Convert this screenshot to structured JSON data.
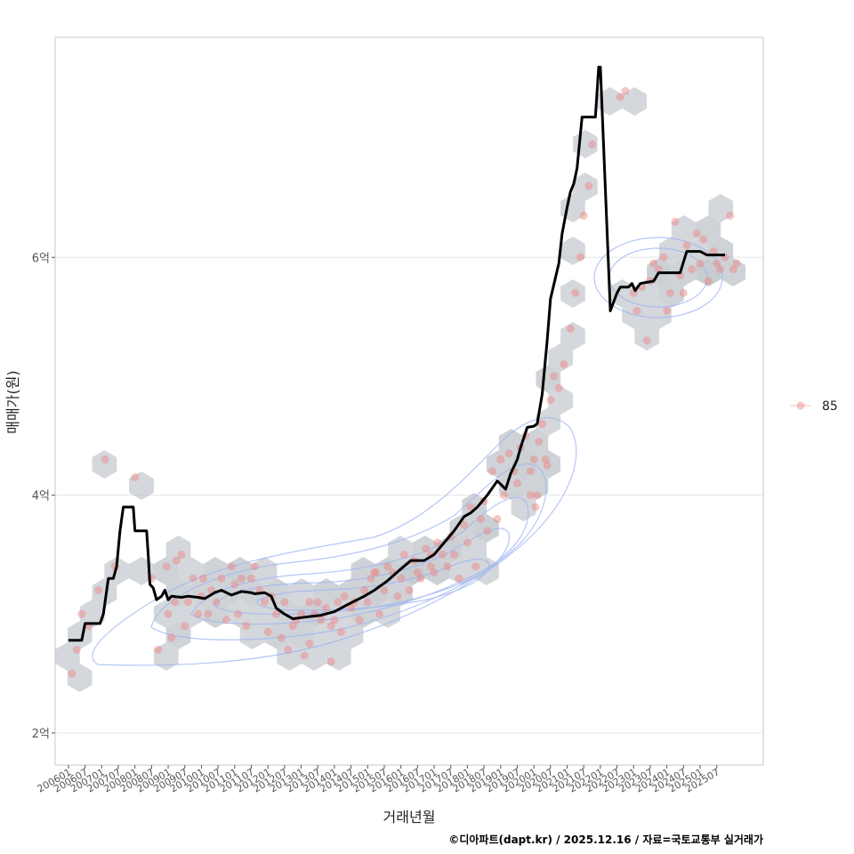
{
  "chart_data": {
    "type": "scatter",
    "title": "",
    "xlabel": "거래년월",
    "ylabel": "매매가(원)",
    "caption": "©디아파트(dapt.kr) / 2025.12.16 / 자료=국토교통부 실거래가",
    "xlim": [
      2005.6,
      2026.9
    ],
    "ylim": [
      1.73,
      7.85
    ],
    "y_ticks": [
      {
        "value": 2,
        "label": "2억"
      },
      {
        "value": 4,
        "label": "4억"
      },
      {
        "value": 6,
        "label": "6억"
      }
    ],
    "x_tick_labels": [
      "200601",
      "200607",
      "200701",
      "200707",
      "200801",
      "200807",
      "200901",
      "200907",
      "201001",
      "201007",
      "201101",
      "201107",
      "201201",
      "201207",
      "201301",
      "201307",
      "201401",
      "201407",
      "201501",
      "201507",
      "201601",
      "201607",
      "201701",
      "201707",
      "201801",
      "201807",
      "201901",
      "201907",
      "202001",
      "202007",
      "202101",
      "202107",
      "202201",
      "202207",
      "202301",
      "202307",
      "202401",
      "202407",
      "202501",
      "202507"
    ],
    "legend": [
      {
        "name": "85",
        "color": "#f08080"
      }
    ],
    "legend_position": "right",
    "colors": {
      "points": "#f08080",
      "line": "#000000",
      "hex": "#b8bec4",
      "contour": "#9db4f2"
    },
    "series": [
      {
        "name": "moving-average",
        "kind": "line",
        "x": [
          2006.0,
          2006.4,
          2006.5,
          2006.95,
          2007.05,
          2007.2,
          2007.35,
          2007.45,
          2007.55,
          2007.65,
          2007.95,
          2008.0,
          2008.35,
          2008.4,
          2008.45,
          2008.55,
          2008.65,
          2008.8,
          2008.9,
          2009.0,
          2009.1,
          2009.4,
          2009.6,
          2009.9,
          2010.1,
          2010.4,
          2010.6,
          2010.9,
          2011.2,
          2011.5,
          2011.6,
          2011.9,
          2012.1,
          2012.25,
          2012.5,
          2012.75,
          2013.0,
          2013.3,
          2013.6,
          2014.0,
          2014.4,
          2014.9,
          2015.2,
          2015.6,
          2016.0,
          2016.3,
          2016.7,
          2017.0,
          2017.3,
          2017.6,
          2017.9,
          2018.1,
          2018.3,
          2018.6,
          2018.9,
          2019.15,
          2019.3,
          2019.5,
          2019.6,
          2019.8,
          2020.0,
          2020.1,
          2020.25,
          2020.4,
          2020.5,
          2020.75,
          2020.85,
          2021.0,
          2021.1,
          2021.2,
          2021.3,
          2021.45,
          2021.6,
          2021.7,
          2021.85,
          2021.95,
          2022.0,
          2022.3,
          2022.5,
          2022.6,
          2022.75,
          2022.85,
          2022.95,
          2023.05,
          2023.2,
          2023.6,
          2023.65,
          2023.75,
          2023.8,
          2024.0,
          2024.2,
          2024.3,
          2024.4,
          2024.6,
          2025.0,
          2025.2,
          2025.3,
          2025.6,
          2025.75
        ],
        "y": [
          2.78,
          2.78,
          2.92,
          2.92,
          3.0,
          3.3,
          3.3,
          3.4,
          3.7,
          3.9,
          3.9,
          3.7,
          3.7,
          3.5,
          3.25,
          3.22,
          3.12,
          3.15,
          3.2,
          3.12,
          3.15,
          3.14,
          3.15,
          3.14,
          3.13,
          3.18,
          3.2,
          3.16,
          3.19,
          3.18,
          3.17,
          3.18,
          3.15,
          3.05,
          3.0,
          2.96,
          2.97,
          2.98,
          2.99,
          3.02,
          3.08,
          3.15,
          3.2,
          3.28,
          3.38,
          3.45,
          3.45,
          3.5,
          3.6,
          3.7,
          3.82,
          3.85,
          3.9,
          4.0,
          4.12,
          4.05,
          4.18,
          4.3,
          4.4,
          4.57,
          4.58,
          4.6,
          4.85,
          5.3,
          5.65,
          5.95,
          6.2,
          6.42,
          6.55,
          6.62,
          6.75,
          7.18,
          7.18,
          7.18,
          7.18,
          7.6,
          7.6,
          5.55,
          5.7,
          5.75,
          5.75,
          5.75,
          5.78,
          5.72,
          5.78,
          5.8,
          5.82,
          5.87,
          5.87,
          5.87,
          5.87,
          5.87,
          5.87,
          6.05,
          6.05,
          6.02,
          6.02,
          6.02,
          6.02
        ]
      },
      {
        "name": "85",
        "kind": "points",
        "x": [
          2006.1,
          2006.25,
          2006.4,
          2006.6,
          2006.9,
          2007.1,
          2007.4,
          2008.0,
          2008.5,
          2008.7,
          2008.95,
          2009.0,
          2009.1,
          2009.2,
          2009.25,
          2009.4,
          2009.5,
          2009.6,
          2009.75,
          2009.9,
          2010.0,
          2010.05,
          2010.2,
          2010.3,
          2010.45,
          2010.6,
          2010.75,
          2010.9,
          2011.0,
          2011.1,
          2011.2,
          2011.35,
          2011.5,
          2011.6,
          2011.75,
          2011.9,
          2012.0,
          2012.1,
          2012.25,
          2012.4,
          2012.5,
          2012.6,
          2012.75,
          2012.85,
          2013.0,
          2013.1,
          2013.25,
          2013.4,
          2013.5,
          2013.6,
          2013.75,
          2013.9,
          2014.0,
          2014.1,
          2014.2,
          2014.3,
          2014.5,
          2014.6,
          2014.75,
          2014.9,
          2015.0,
          2015.1,
          2015.2,
          2015.35,
          2015.5,
          2015.6,
          2015.75,
          2015.9,
          2016.0,
          2016.1,
          2016.25,
          2016.4,
          2016.5,
          2016.6,
          2016.75,
          2016.9,
          2017.0,
          2017.1,
          2017.25,
          2017.4,
          2017.5,
          2017.6,
          2017.75,
          2017.9,
          2018.0,
          2018.1,
          2018.25,
          2018.4,
          2018.5,
          2018.6,
          2018.75,
          2018.9,
          2019.0,
          2019.1,
          2019.25,
          2019.4,
          2019.5,
          2019.6,
          2019.75,
          2019.9,
          2020.0,
          2020.1,
          2020.25,
          2020.4,
          2020.5,
          2020.6,
          2020.75,
          2020.9,
          2021.1,
          2021.25,
          2021.4,
          2021.5,
          2021.65,
          2021.75,
          2022.6,
          2022.75,
          2023.0,
          2023.1,
          2023.25,
          2023.4,
          2023.5,
          2023.6,
          2023.75,
          2023.9,
          2024.0,
          2024.1,
          2024.25,
          2024.4,
          2024.5,
          2024.6,
          2024.75,
          2024.9,
          2025.0,
          2025.1,
          2025.25,
          2025.4,
          2025.5,
          2025.6,
          2025.75,
          2025.9,
          2026.0,
          2026.1,
          2019.9,
          2020.05,
          2020.15,
          2020.35,
          2013.25,
          2013.9,
          2015.25,
          2016.9
        ],
        "y": [
          2.5,
          2.7,
          3.0,
          2.9,
          3.2,
          4.3,
          3.4,
          4.15,
          3.3,
          2.7,
          3.4,
          3.0,
          2.8,
          3.1,
          3.45,
          3.5,
          2.9,
          3.1,
          3.3,
          3.0,
          3.15,
          3.3,
          3.0,
          3.2,
          3.1,
          3.3,
          2.95,
          3.4,
          3.25,
          3.0,
          3.3,
          2.9,
          3.3,
          3.4,
          3.2,
          3.1,
          2.85,
          3.15,
          3.0,
          2.8,
          3.1,
          2.7,
          2.9,
          2.95,
          3.0,
          2.65,
          3.1,
          3.0,
          3.1,
          2.95,
          3.05,
          2.9,
          2.95,
          3.1,
          2.85,
          3.15,
          3.05,
          3.1,
          2.95,
          3.2,
          3.1,
          3.3,
          3.35,
          3.0,
          3.2,
          3.4,
          3.35,
          3.15,
          3.3,
          3.5,
          3.2,
          3.45,
          3.35,
          3.3,
          3.55,
          3.4,
          3.35,
          3.6,
          3.5,
          3.4,
          3.65,
          3.5,
          3.3,
          3.75,
          3.6,
          3.9,
          3.4,
          3.8,
          3.95,
          3.7,
          4.2,
          3.8,
          4.3,
          4.0,
          4.35,
          4.2,
          4.1,
          4.4,
          4.5,
          4.2,
          4.3,
          4.0,
          4.6,
          4.25,
          4.8,
          5.0,
          4.9,
          5.1,
          5.4,
          5.7,
          6.0,
          6.35,
          6.6,
          6.95,
          7.35,
          7.4,
          5.7,
          5.55,
          5.75,
          5.3,
          5.8,
          5.95,
          5.9,
          6.0,
          5.55,
          5.7,
          6.3,
          5.85,
          5.7,
          6.1,
          5.9,
          6.2,
          5.95,
          6.15,
          5.8,
          6.05,
          5.95,
          5.9,
          6.0,
          6.35,
          5.9,
          5.95,
          4.0,
          3.9,
          4.45,
          4.3,
          2.75,
          2.6,
          3.35,
          3.5
        ]
      }
    ]
  }
}
